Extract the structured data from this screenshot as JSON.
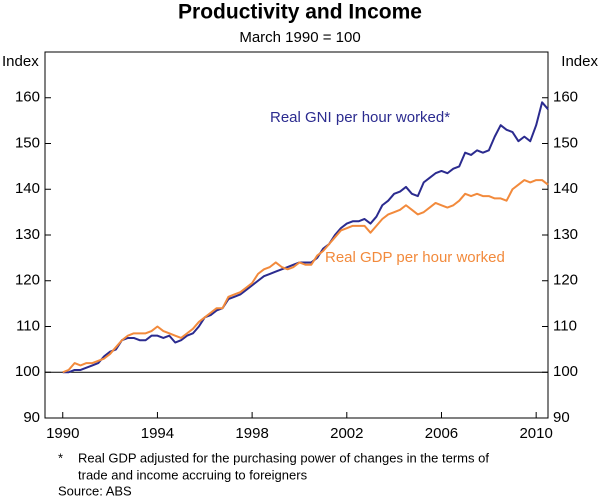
{
  "chart_data": {
    "type": "line",
    "title": "Productivity and Income",
    "subtitle": "March 1990 = 100",
    "y_label": "Index",
    "y2_label": "Index",
    "x": [
      1990,
      1990.25,
      1990.5,
      1990.75,
      1991,
      1991.25,
      1991.5,
      1991.75,
      1992,
      1992.25,
      1992.5,
      1992.75,
      1993,
      1993.25,
      1993.5,
      1993.75,
      1994,
      1994.25,
      1994.5,
      1994.75,
      1995,
      1995.25,
      1995.5,
      1995.75,
      1996,
      1996.25,
      1996.5,
      1996.75,
      1997,
      1997.25,
      1997.5,
      1997.75,
      1998,
      1998.25,
      1998.5,
      1998.75,
      1999,
      1999.25,
      1999.5,
      1999.75,
      2000,
      2000.25,
      2000.5,
      2000.75,
      2001,
      2001.25,
      2001.5,
      2001.75,
      2002,
      2002.25,
      2002.5,
      2002.75,
      2003,
      2003.25,
      2003.5,
      2003.75,
      2004,
      2004.25,
      2004.5,
      2004.75,
      2005,
      2005.25,
      2005.5,
      2005.75,
      2006,
      2006.25,
      2006.5,
      2006.75,
      2007,
      2007.25,
      2007.5,
      2007.75,
      2008,
      2008.25,
      2008.5,
      2008.75,
      2009,
      2009.25,
      2009.5,
      2009.75,
      2010,
      2010.25,
      2010.5
    ],
    "series": [
      {
        "name": "Real GNI per hour worked*",
        "color": "#2b2b8f",
        "values": [
          100,
          100,
          100.5,
          100.5,
          101,
          101.5,
          102,
          103.5,
          104.5,
          105,
          107,
          107.5,
          107.5,
          107,
          107,
          108,
          108,
          107.5,
          108,
          106.5,
          107,
          108,
          108.5,
          110,
          112,
          112.5,
          113.5,
          114,
          116,
          116.5,
          117,
          118,
          119,
          120,
          121,
          121.5,
          122,
          122.5,
          123,
          123.5,
          124,
          124,
          124,
          125,
          127,
          128,
          130,
          131.5,
          132.5,
          133,
          133,
          133.5,
          132.5,
          134,
          136.5,
          137.5,
          139,
          139.5,
          140.5,
          139,
          138.5,
          141.5,
          142.5,
          143.5,
          144,
          143.5,
          144.5,
          145,
          148,
          147.5,
          148.5,
          148,
          148.5,
          151.5,
          154,
          153,
          152.5,
          150.5,
          151.5,
          150.5,
          154,
          159,
          157.5
        ]
      },
      {
        "name": "Real GDP per hour worked",
        "color": "#f28a3c",
        "values": [
          100,
          100.5,
          102,
          101.5,
          102,
          102,
          102.5,
          103,
          104,
          105.5,
          107,
          108,
          108.5,
          108.5,
          108.5,
          109,
          110,
          109,
          108.5,
          108,
          107.5,
          108.5,
          109.5,
          111,
          112,
          113,
          114,
          114,
          116.5,
          117,
          117.5,
          118.5,
          119.5,
          121.5,
          122.5,
          123,
          124,
          123,
          122.5,
          123,
          124,
          123.5,
          123.5,
          125.5,
          126.5,
          128,
          129.5,
          131,
          131.5,
          132,
          132,
          132,
          130.5,
          132,
          133.5,
          134.5,
          135,
          135.5,
          136.5,
          135.5,
          134.5,
          135,
          136,
          137,
          136.5,
          136,
          136.5,
          137.5,
          139,
          138.5,
          139,
          138.5,
          138.5,
          138,
          138,
          137.5,
          140,
          141,
          142,
          141.5,
          142,
          142,
          141
        ]
      }
    ],
    "xlim": [
      1989.25,
      2010.5
    ],
    "xticks": [
      1990,
      1994,
      1998,
      2002,
      2006,
      2010
    ],
    "ylim": [
      90,
      170
    ],
    "yticks": [
      90,
      100,
      110,
      120,
      130,
      140,
      150,
      160
    ],
    "y2lim": [
      90,
      170
    ],
    "y2ticks": [
      90,
      100,
      110,
      120,
      130,
      140,
      150,
      160
    ],
    "reference_line": 100,
    "grid": false,
    "footnote_marker": "*",
    "footnote": [
      "Real GDP adjusted for the purchasing power of changes in the terms of",
      "trade and income accruing to foreigners"
    ],
    "source": "Source: ABS"
  }
}
